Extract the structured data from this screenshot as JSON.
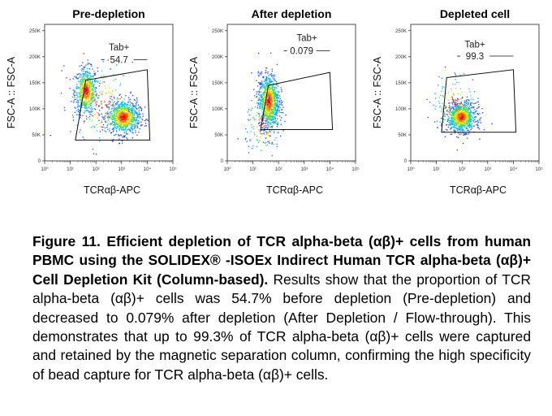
{
  "chart_data": [
    {
      "type": "scatter",
      "title": "Pre-depletion",
      "xlabel": "TCRαβ-APC",
      "ylabel": "FSC-A :: FSC-A",
      "x_scale": "log",
      "x_ticks": [
        "10⁰",
        "10¹",
        "10²",
        "10³",
        "10⁴",
        "10⁵"
      ],
      "y_ticks": [
        "0",
        "50K",
        "100K",
        "150K",
        "200K",
        "250K"
      ],
      "ylim": [
        0,
        262144
      ],
      "gate": {
        "name": "Tab+",
        "value": "54.7"
      },
      "populations": [
        {
          "x": 40,
          "y": 135000
        },
        {
          "x": 1200,
          "y": 85000
        }
      ]
    },
    {
      "type": "scatter",
      "title": "After depletion",
      "xlabel": "TCRαβ-APC",
      "ylabel": "FSC-A :: FSC-A",
      "x_scale": "log",
      "x_ticks": [
        "10⁰",
        "10¹",
        "10²",
        "10³",
        "10⁴",
        "10⁵"
      ],
      "y_ticks": [
        "0",
        "50K",
        "100K",
        "150K",
        "200K",
        "250K"
      ],
      "ylim": [
        0,
        262144
      ],
      "gate": {
        "name": "Tab+",
        "value": "0.079"
      },
      "populations": [
        {
          "x": 40,
          "y": 115000
        }
      ]
    },
    {
      "type": "scatter",
      "title": "Depleted cell",
      "xlabel": "TCRαβ-APC",
      "ylabel": "FSC-A :: FSC-A",
      "x_scale": "log",
      "x_ticks": [
        "10⁰",
        "10¹",
        "10²",
        "10³",
        "10⁴",
        "10⁵"
      ],
      "y_ticks": [
        "0",
        "50K",
        "100K",
        "150K",
        "200K",
        "250K"
      ],
      "ylim": [
        0,
        262144
      ],
      "gate": {
        "name": "Tab+",
        "value": "99.3"
      },
      "populations": [
        {
          "x": 100,
          "y": 85000
        }
      ]
    }
  ],
  "caption": {
    "bold": "Figure 11. Efficient depletion of TCR alpha-beta (αβ)+ cells from human PBMC using the SOLIDEX® -ISOEx Indirect Human TCR alpha-beta (αβ)+ Cell Depletion Kit (Column-based).",
    "body": " Results show that the proportion of TCR alpha-beta (αβ)+ cells was 54.7% before depletion (Pre-depletion) and decreased to 0.079% after depletion (After Depletion / Flow-through). This demonstrates that up to 99.3% of TCR alpha-beta (αβ)+ cells were captured and retained by the magnetic separation column, confirming the high specificity of bead capture for TCR alpha-beta (αβ)+ cells."
  }
}
